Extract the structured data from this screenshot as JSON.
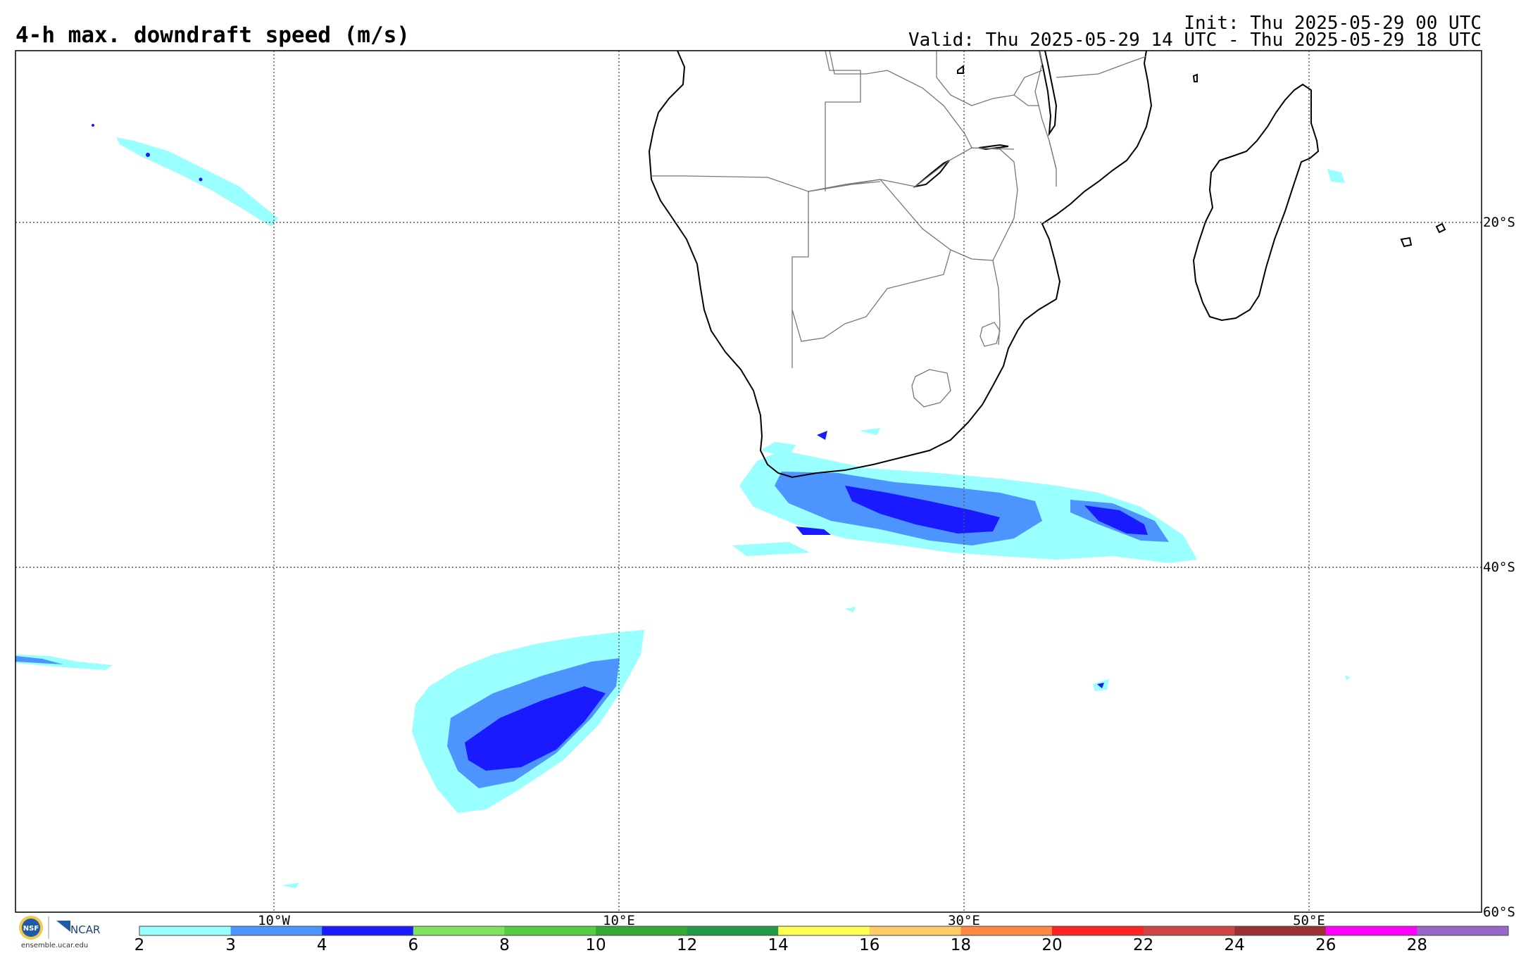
{
  "header": {
    "title": "4-h max. downdraft speed (m/s)",
    "init": "Init: Thu 2025-05-29 00 UTC",
    "valid": "Valid: Thu 2025-05-29 14 UTC - Thu 2025-05-29 18 UTC"
  },
  "map": {
    "lon_range": [
      -25,
      60
    ],
    "lat_range": [
      -60,
      -10
    ],
    "lon_gridlines": [
      -10,
      10,
      30,
      50
    ],
    "lon_labels": [
      "10°W",
      "10°E",
      "30°E",
      "50°E"
    ],
    "lat_gridlines": [
      -20,
      -40,
      -60
    ],
    "lat_labels": [
      "20°S",
      "40°S",
      "60°S"
    ]
  },
  "colorbar": {
    "ticks": [
      "2",
      "3",
      "4",
      "6",
      "8",
      "10",
      "12",
      "14",
      "16",
      "18",
      "20",
      "22",
      "24",
      "26",
      "28"
    ],
    "colors": [
      "#99ffff",
      "#4d94ff",
      "#1a1aff",
      "#80e060",
      "#55cc44",
      "#33aa33",
      "#229944",
      "#ffff55",
      "#ffcc66",
      "#ff8844",
      "#ff2222",
      "#cc4444",
      "#993333",
      "#ff00ff",
      "#9966cc"
    ]
  },
  "logo": {
    "org1": "NSF",
    "org2": "NCAR",
    "url": "ensemble.ucar.edu"
  }
}
